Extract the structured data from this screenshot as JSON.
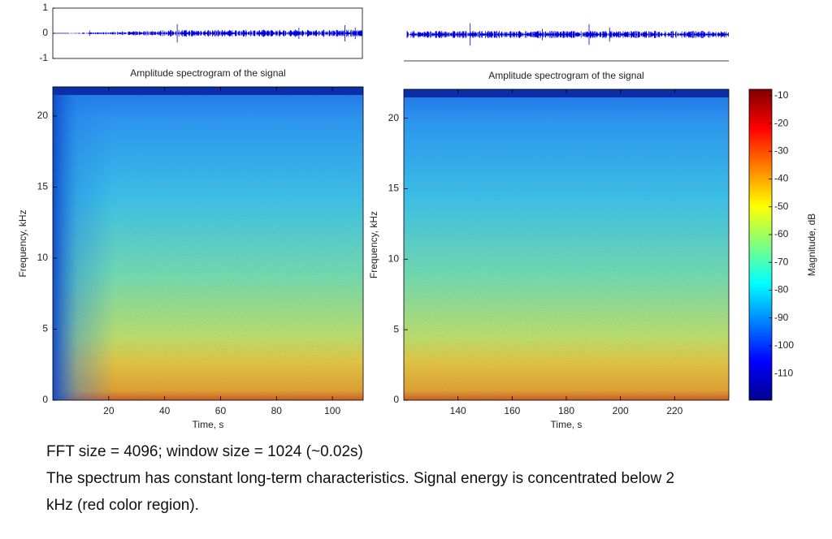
{
  "chart_data": [
    {
      "type": "waveform",
      "ylim": [
        -1,
        1
      ],
      "yticks": [
        1,
        0,
        -1
      ]
    },
    {
      "type": "waveform",
      "ylim": [
        -1,
        1
      ]
    },
    {
      "type": "spectrogram",
      "title": "Amplitude spectrogram of the signal",
      "xlabel": "Time, s",
      "ylabel": "Frequency, kHz",
      "xlim": [
        0,
        111
      ],
      "xticks": [
        20,
        40,
        60,
        80,
        100
      ],
      "ylim": [
        0,
        22.05
      ],
      "yticks": [
        0,
        5,
        10,
        15,
        20
      ]
    },
    {
      "type": "spectrogram",
      "title": "Amplitude spectrogram of the signal",
      "xlabel": "Time, s",
      "ylabel": "Frequency, kHz",
      "xlim": [
        120,
        240
      ],
      "xticks": [
        140,
        160,
        180,
        200,
        220
      ],
      "ylim": [
        0,
        22.05
      ],
      "yticks": [
        0,
        5,
        10,
        15,
        20
      ]
    },
    {
      "type": "colorbar",
      "label": "Magnitude, dB",
      "ylim": [
        -119.6,
        -7.7
      ],
      "yticks": [
        -10,
        -20,
        -30,
        -40,
        -50,
        -60,
        -70,
        -80,
        -90,
        -100,
        -110
      ]
    }
  ],
  "caption": [
    "FFT size = 4096; window size = 1024 (~0.02s)",
    "The spectrum has constant long-term characteristics. Signal energy is concentrated below 2",
    "kHz (red color region)."
  ]
}
